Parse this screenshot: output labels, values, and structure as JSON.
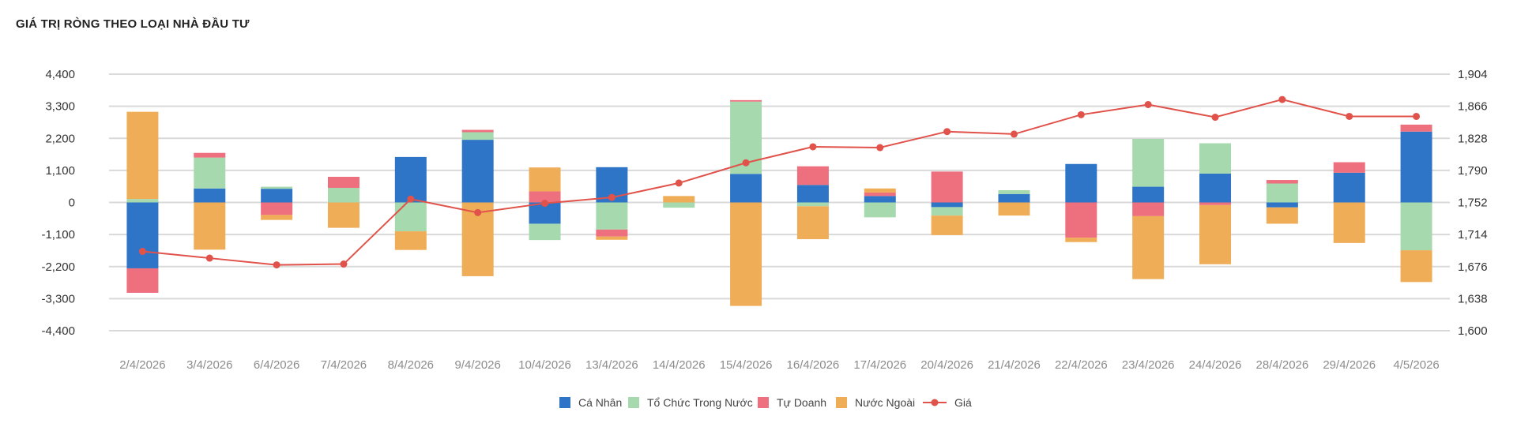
{
  "title": "GIÁ TRỊ RÒNG THEO LOẠI NHÀ ĐẦU TƯ",
  "chart_data": {
    "type": "bar",
    "stacked": true,
    "categories": [
      "2/4/2026",
      "3/4/2026",
      "6/4/2026",
      "7/4/2026",
      "8/4/2026",
      "9/4/2026",
      "10/4/2026",
      "13/4/2026",
      "14/4/2026",
      "15/4/2026",
      "16/4/2026",
      "17/4/2026",
      "20/4/2026",
      "21/4/2026",
      "22/4/2026",
      "23/4/2026",
      "24/4/2026",
      "28/4/2026",
      "29/4/2026",
      "4/5/2026"
    ],
    "series": [
      {
        "name": "Cá Nhân",
        "color": "#2e75c8",
        "values": [
          -2260,
          480,
          470,
          0,
          1560,
          2150,
          -730,
          1210,
          0,
          980,
          600,
          220,
          -160,
          290,
          1320,
          540,
          990,
          -170,
          1020,
          2430
        ]
      },
      {
        "name": "Tổ Chức Trong Nước",
        "color": "#a6d9ae",
        "values": [
          120,
          1060,
          70,
          500,
          -990,
          260,
          -560,
          -930,
          -180,
          2480,
          -130,
          -510,
          -290,
          130,
          0,
          1640,
          1040,
          650,
          0,
          -1640
        ]
      },
      {
        "name": "Tự Doanh",
        "color": "#ee6f7d",
        "values": [
          -840,
          160,
          -430,
          380,
          0,
          80,
          380,
          -240,
          0,
          50,
          640,
          120,
          1060,
          0,
          -1210,
          -470,
          -90,
          120,
          360,
          240
        ]
      },
      {
        "name": "Nước Ngoài",
        "color": "#f0ad57",
        "values": [
          2990,
          -1620,
          -170,
          -870,
          -640,
          -2530,
          820,
          -110,
          220,
          -3550,
          -1130,
          140,
          -670,
          -450,
          -150,
          -2160,
          -2030,
          -560,
          -1390,
          -1090
        ]
      }
    ],
    "line": {
      "name": "Giá",
      "color": "#e0524a",
      "values": [
        1694,
        1686,
        1678,
        1679,
        1756,
        1740,
        1751,
        1758,
        1775,
        1799,
        1818,
        1817,
        1836,
        1833,
        1856,
        1868,
        1853,
        1874,
        1854,
        1854
      ]
    },
    "y_left": {
      "min": -4400,
      "max": 4400,
      "ticks": [
        "4,400",
        "3,300",
        "2,200",
        "1,100",
        "0",
        "-1,100",
        "-2,200",
        "-3,300",
        "-4,400"
      ]
    },
    "y_right": {
      "min": 1600,
      "max": 1904,
      "ticks": [
        "1,904",
        "1,866",
        "1,828",
        "1,790",
        "1,752",
        "1,714",
        "1,676",
        "1,638",
        "1,600"
      ]
    },
    "grid": true,
    "legend_position": "bottom"
  }
}
